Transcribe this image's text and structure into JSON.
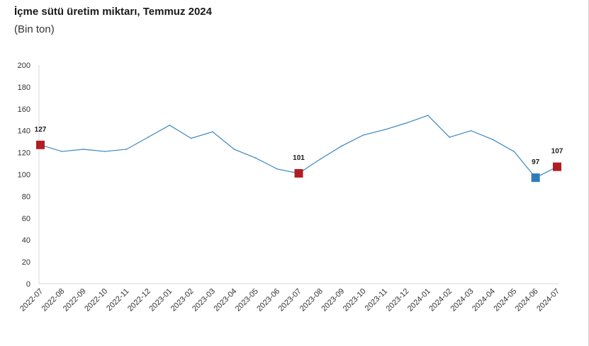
{
  "title": "İçme sütü üretim miktarı, Temmuz 2024",
  "subtitle": "(Bin ton)",
  "chart_data": {
    "type": "line",
    "title": "İçme sütü üretim miktarı, Temmuz 2024",
    "subtitle": "(Bin ton)",
    "categories": [
      "2022-07",
      "2022-08",
      "2022-09",
      "2022-10",
      "2022-11",
      "2022-12",
      "2023-01",
      "2023-02",
      "2023-03",
      "2023-04",
      "2023-05",
      "2023-06",
      "2023-07",
      "2023-08",
      "2023-09",
      "2023-10",
      "2023-11",
      "2023-12",
      "2024-01",
      "2024-02",
      "2024-03",
      "2024-04",
      "2024-05",
      "2024-06",
      "2024-07"
    ],
    "series": [
      {
        "values": [
          127,
          121,
          123,
          121,
          123,
          134,
          145,
          133,
          139,
          123,
          115,
          105,
          101,
          114,
          126,
          136,
          141,
          147,
          154,
          134,
          140,
          132,
          121,
          97,
          107
        ],
        "color": "#3a87c0"
      }
    ],
    "highlights": [
      {
        "index": 0,
        "value": 127,
        "label": "127",
        "color": "#b01e23"
      },
      {
        "index": 12,
        "value": 101,
        "label": "101",
        "color": "#b01e23"
      },
      {
        "index": 23,
        "value": 97,
        "label": "97",
        "color": "#2e7bb6"
      },
      {
        "index": 24,
        "value": 107,
        "label": "107",
        "color": "#b01e23"
      }
    ],
    "yticks": [
      "0",
      "20",
      "40",
      "60",
      "80",
      "100",
      "120",
      "140",
      "160",
      "180",
      "200"
    ],
    "ylim": [
      0,
      200
    ],
    "xlabel": "",
    "ylabel": "",
    "grid": false,
    "legend": false
  }
}
